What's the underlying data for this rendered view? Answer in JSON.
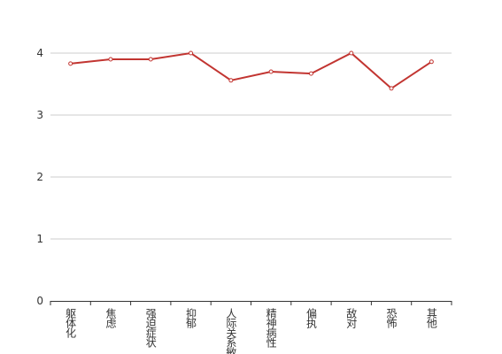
{
  "chart_data": {
    "type": "line",
    "categories": [
      "躯体化",
      "焦虑",
      "强迫症状",
      "抑郁",
      "人际关系敏感",
      "精神病性",
      "偏执",
      "敌对",
      "恐怖",
      "其他"
    ],
    "series": [
      {
        "color": "#c23531",
        "values": [
          3.83,
          3.9,
          3.9,
          4.0,
          3.56,
          3.7,
          3.67,
          4.0,
          3.43,
          3.86
        ]
      }
    ],
    "ylim": [
      0,
      4
    ],
    "yticks": [
      0,
      1,
      2,
      3,
      4
    ],
    "grid": true
  }
}
